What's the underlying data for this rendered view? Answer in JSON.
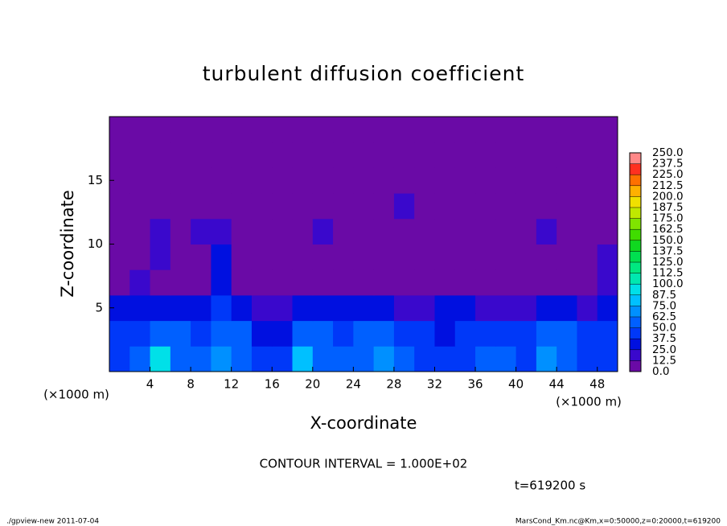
{
  "chart_data": {
    "type": "heatmap",
    "title": "turbulent diffusion coefficient",
    "x_label": "X-coordinate",
    "y_label": "Z-coordinate",
    "x_unit": "(×1000 m)",
    "y_unit": "(×1000 m)",
    "annotation": "CONTOUR INTERVAL = 1.000E+02",
    "time": "t=619200 s",
    "footer_left": "./gpview-new  2011-07-04",
    "footer_right": "MarsCond_Km.nc@Km,x=0:50000,z=0:20000,t=619200",
    "xlim": [
      0,
      50
    ],
    "xticks": [
      4,
      8,
      12,
      16,
      20,
      24,
      28,
      32,
      36,
      40,
      44,
      48
    ],
    "ylim": [
      0,
      20
    ],
    "yticks": [
      5,
      10,
      15
    ],
    "x": [
      1,
      3,
      5,
      7,
      9,
      11,
      13,
      15,
      17,
      19,
      21,
      23,
      25,
      27,
      29,
      31,
      33,
      35,
      37,
      39,
      41,
      43,
      45,
      47,
      49
    ],
    "y": [
      1,
      3,
      5,
      7,
      9,
      11,
      13,
      15,
      17,
      19
    ],
    "z": [
      [
        45,
        50,
        95,
        60,
        55,
        70,
        55,
        45,
        40,
        75,
        55,
        60,
        60,
        70,
        50,
        45,
        40,
        45,
        50,
        55,
        45,
        70,
        60,
        40,
        45
      ],
      [
        40,
        45,
        55,
        50,
        40,
        55,
        55,
        35,
        35,
        55,
        60,
        45,
        50,
        55,
        45,
        40,
        35,
        45,
        40,
        45,
        40,
        55,
        50,
        40,
        45
      ],
      [
        25,
        35,
        30,
        30,
        25,
        45,
        30,
        15,
        15,
        25,
        35,
        30,
        35,
        30,
        20,
        20,
        25,
        30,
        20,
        20,
        15,
        35,
        30,
        20,
        35
      ],
      [
        10,
        15,
        10,
        10,
        5,
        30,
        10,
        5,
        5,
        5,
        5,
        5,
        5,
        5,
        5,
        5,
        5,
        5,
        5,
        5,
        5,
        5,
        5,
        5,
        20
      ],
      [
        10,
        5,
        15,
        5,
        5,
        25,
        10,
        5,
        5,
        5,
        5,
        5,
        5,
        5,
        5,
        5,
        5,
        5,
        5,
        5,
        5,
        5,
        5,
        5,
        20
      ],
      [
        5,
        5,
        15,
        10,
        20,
        15,
        5,
        5,
        5,
        5,
        15,
        5,
        5,
        5,
        5,
        10,
        5,
        5,
        5,
        5,
        5,
        15,
        5,
        5,
        5
      ],
      [
        5,
        5,
        5,
        5,
        5,
        5,
        5,
        5,
        5,
        5,
        5,
        5,
        5,
        5,
        15,
        5,
        5,
        5,
        5,
        5,
        5,
        5,
        5,
        5,
        5
      ],
      [
        2,
        2,
        2,
        2,
        2,
        2,
        2,
        2,
        2,
        2,
        2,
        2,
        2,
        2,
        2,
        2,
        2,
        2,
        2,
        2,
        2,
        2,
        2,
        2,
        2
      ],
      [
        2,
        2,
        2,
        2,
        2,
        2,
        2,
        2,
        2,
        2,
        2,
        2,
        2,
        2,
        2,
        2,
        2,
        2,
        2,
        2,
        2,
        2,
        2,
        2,
        2
      ],
      [
        2,
        2,
        2,
        2,
        2,
        2,
        2,
        2,
        2,
        2,
        2,
        2,
        2,
        2,
        2,
        2,
        2,
        2,
        2,
        2,
        2,
        2,
        2,
        2,
        2
      ]
    ],
    "levels": [
      {
        "value": 0,
        "label": "0.0"
      },
      {
        "value": 12.5,
        "label": "12.5"
      },
      {
        "value": 25,
        "label": "25.0"
      },
      {
        "value": 37.5,
        "label": "37.5"
      },
      {
        "value": 50,
        "label": "50.0"
      },
      {
        "value": 62.5,
        "label": "62.5"
      },
      {
        "value": 75,
        "label": "75.0"
      },
      {
        "value": 87.5,
        "label": "87.5"
      },
      {
        "value": 100,
        "label": "100.0"
      },
      {
        "value": 112.5,
        "label": "112.5"
      },
      {
        "value": 125,
        "label": "125.0"
      },
      {
        "value": 137.5,
        "label": "137.5"
      },
      {
        "value": 150,
        "label": "150.0"
      },
      {
        "value": 162.5,
        "label": "162.5"
      },
      {
        "value": 175,
        "label": "175.0"
      },
      {
        "value": 187.5,
        "label": "187.5"
      },
      {
        "value": 200,
        "label": "200.0"
      },
      {
        "value": 212.5,
        "label": "212.5"
      },
      {
        "value": 225,
        "label": "225.0"
      },
      {
        "value": 237.5,
        "label": "237.5"
      },
      {
        "value": 250,
        "label": "250.0"
      }
    ],
    "colors": [
      "#6a0aa6",
      "#3a08cc",
      "#0010e0",
      "#0038f8",
      "#0060ff",
      "#0090ff",
      "#00c0ff",
      "#00e0e8",
      "#00e8b0",
      "#00e880",
      "#00e050",
      "#10d820",
      "#40dc00",
      "#80e400",
      "#c0e800",
      "#f0e000",
      "#ffb000",
      "#ff7000",
      "#ff3020",
      "#ff8888"
    ]
  }
}
